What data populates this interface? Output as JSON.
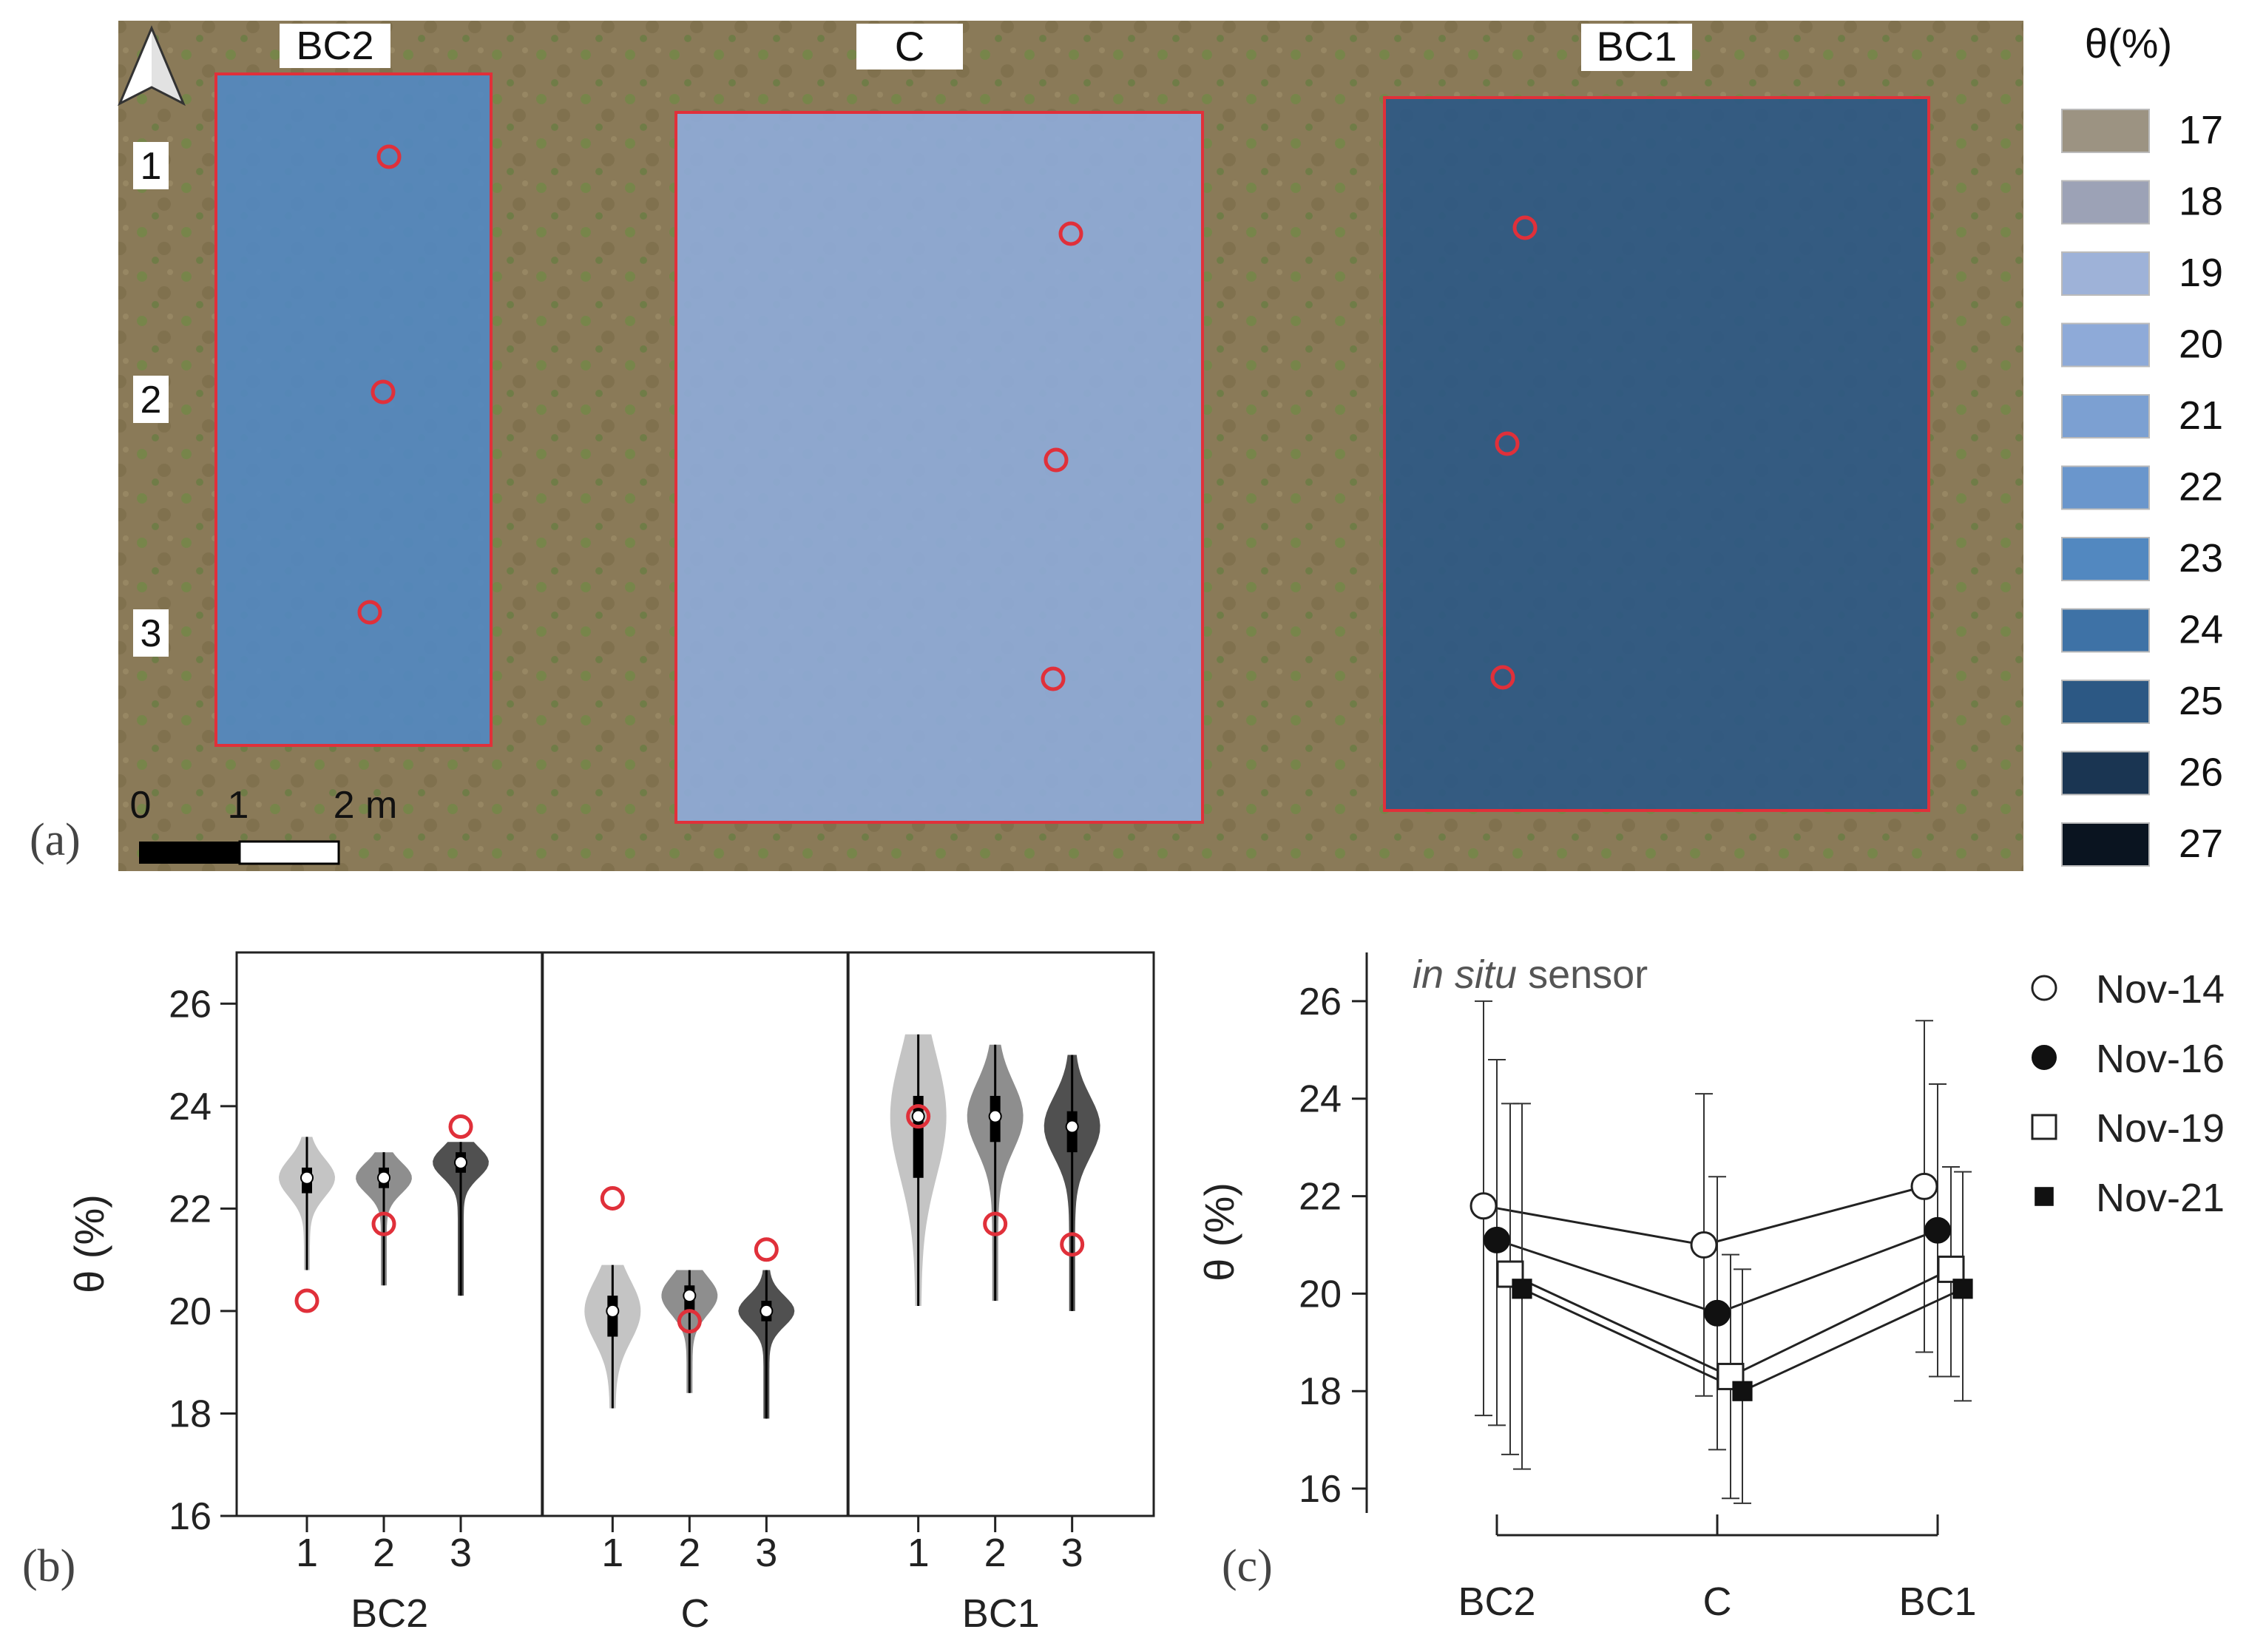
{
  "panel_a": {
    "panel_label": "(a)",
    "plots": [
      {
        "name": "BC2",
        "level": 23.0
      },
      {
        "name": "C",
        "level": 20.0
      },
      {
        "name": "BC1",
        "level": 24.6
      }
    ],
    "row_labels": [
      "1",
      "2",
      "3"
    ],
    "scale_bar": {
      "labels": [
        "0",
        "1",
        "2 m"
      ]
    },
    "legend": {
      "title": "θ(%)",
      "items": [
        {
          "label": "17",
          "color": "#9c9382"
        },
        {
          "label": "18",
          "color": "#9ca2b6"
        },
        {
          "label": "19",
          "color": "#9eb2d8"
        },
        {
          "label": "20",
          "color": "#8eaad8"
        },
        {
          "label": "21",
          "color": "#7ca0d2"
        },
        {
          "label": "22",
          "color": "#6a96cc"
        },
        {
          "label": "23",
          "color": "#5288c0"
        },
        {
          "label": "24",
          "color": "#3e72a6"
        },
        {
          "label": "25",
          "color": "#2c5884"
        },
        {
          "label": "26",
          "color": "#1a3552"
        },
        {
          "label": "27",
          "color": "#0a1420"
        }
      ]
    }
  },
  "chart_data": [
    {
      "type": "violin",
      "panel_label": "(b)",
      "ylabel": "θ (%)",
      "ylim": [
        16,
        27
      ],
      "yticks": [
        "16",
        "18",
        "20",
        "22",
        "24",
        "26"
      ],
      "groups": [
        {
          "name": "BC2",
          "categories": [
            "1",
            "2",
            "3"
          ],
          "median": [
            22.6,
            22.6,
            22.9
          ],
          "q1": [
            22.3,
            22.4,
            22.7
          ],
          "q3": [
            22.8,
            22.8,
            23.1
          ],
          "min": [
            20.8,
            20.5,
            20.3
          ],
          "max": [
            23.4,
            23.1,
            23.3
          ],
          "sensor": [
            20.2,
            21.7,
            23.6
          ]
        },
        {
          "name": "C",
          "categories": [
            "1",
            "2",
            "3"
          ],
          "median": [
            20.0,
            20.3,
            20.0
          ],
          "q1": [
            19.5,
            20.0,
            19.8
          ],
          "q3": [
            20.3,
            20.5,
            20.2
          ],
          "min": [
            18.1,
            18.4,
            17.9
          ],
          "max": [
            20.9,
            20.8,
            20.8
          ],
          "sensor": [
            22.2,
            19.8,
            21.2
          ]
        },
        {
          "name": "BC1",
          "categories": [
            "1",
            "2",
            "3"
          ],
          "median": [
            23.8,
            23.8,
            23.6
          ],
          "q1": [
            22.6,
            23.3,
            23.1
          ],
          "q3": [
            24.2,
            24.2,
            23.9
          ],
          "min": [
            20.1,
            20.2,
            20.0
          ],
          "max": [
            25.4,
            25.2,
            25.0
          ],
          "sensor": [
            23.8,
            21.7,
            21.3
          ]
        }
      ]
    },
    {
      "type": "line",
      "panel_label": "(c)",
      "annotation_italic": "in situ",
      "annotation_rest": " sensor",
      "ylabel": "θ (%)",
      "ylim": [
        15.5,
        27
      ],
      "yticks": [
        "16",
        "18",
        "20",
        "22",
        "24",
        "26"
      ],
      "categories": [
        "BC2",
        "C",
        "BC1"
      ],
      "series": [
        {
          "name": "Nov-14",
          "marker": "open-circle",
          "values": [
            21.8,
            21.0,
            22.2
          ],
          "err_low": [
            17.5,
            17.9,
            18.8
          ],
          "err_high": [
            26.0,
            24.1,
            25.6
          ]
        },
        {
          "name": "Nov-16",
          "marker": "filled-circle",
          "values": [
            21.1,
            19.6,
            21.3
          ],
          "err_low": [
            17.3,
            16.8,
            18.3
          ],
          "err_high": [
            24.8,
            22.4,
            24.3
          ]
        },
        {
          "name": "Nov-19",
          "marker": "open-square",
          "values": [
            20.4,
            18.3,
            20.5
          ],
          "err_low": [
            16.7,
            15.8,
            18.3
          ],
          "err_high": [
            23.9,
            20.8,
            22.6
          ]
        },
        {
          "name": "Nov-21",
          "marker": "filled-square",
          "values": [
            20.1,
            18.0,
            20.1
          ],
          "err_low": [
            16.4,
            15.7,
            17.8
          ],
          "err_high": [
            23.9,
            20.5,
            22.5
          ]
        }
      ]
    }
  ]
}
